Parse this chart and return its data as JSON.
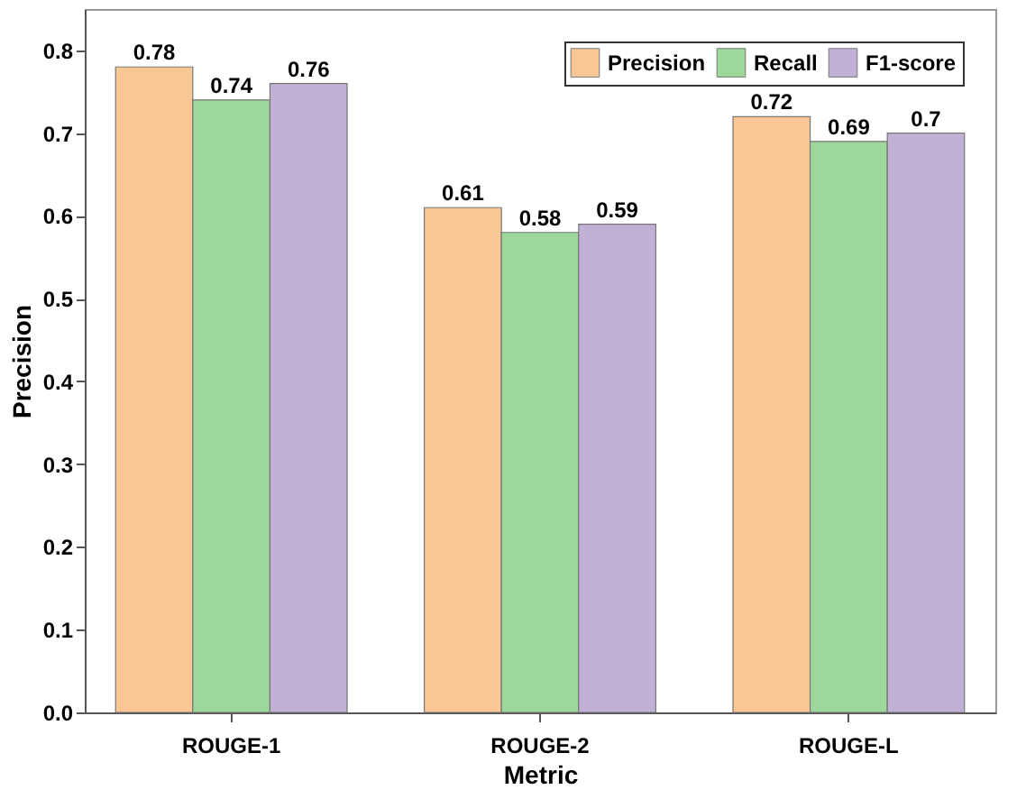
{
  "chart_data": {
    "type": "bar",
    "xlabel": "Metric",
    "ylabel": "Precision",
    "categories": [
      "ROUGE-1",
      "ROUGE-2",
      "ROUGE-L"
    ],
    "series": [
      {
        "name": "Precision",
        "color": "#f9c795",
        "values": [
          0.78,
          0.61,
          0.72
        ]
      },
      {
        "name": "Recall",
        "color": "#9ed79b",
        "values": [
          0.74,
          0.58,
          0.69
        ]
      },
      {
        "name": "F1-score",
        "color": "#c2b1d7",
        "values": [
          0.76,
          0.59,
          0.7
        ]
      }
    ],
    "ylim": [
      0,
      0.85
    ],
    "yticks": [
      {
        "value": 0,
        "label": "0.0"
      },
      0.1,
      0.2,
      0.3,
      0.4,
      0.5,
      0.6,
      0.7,
      0.8
    ],
    "data_labels": true,
    "legend": "top right",
    "grid": false
  }
}
